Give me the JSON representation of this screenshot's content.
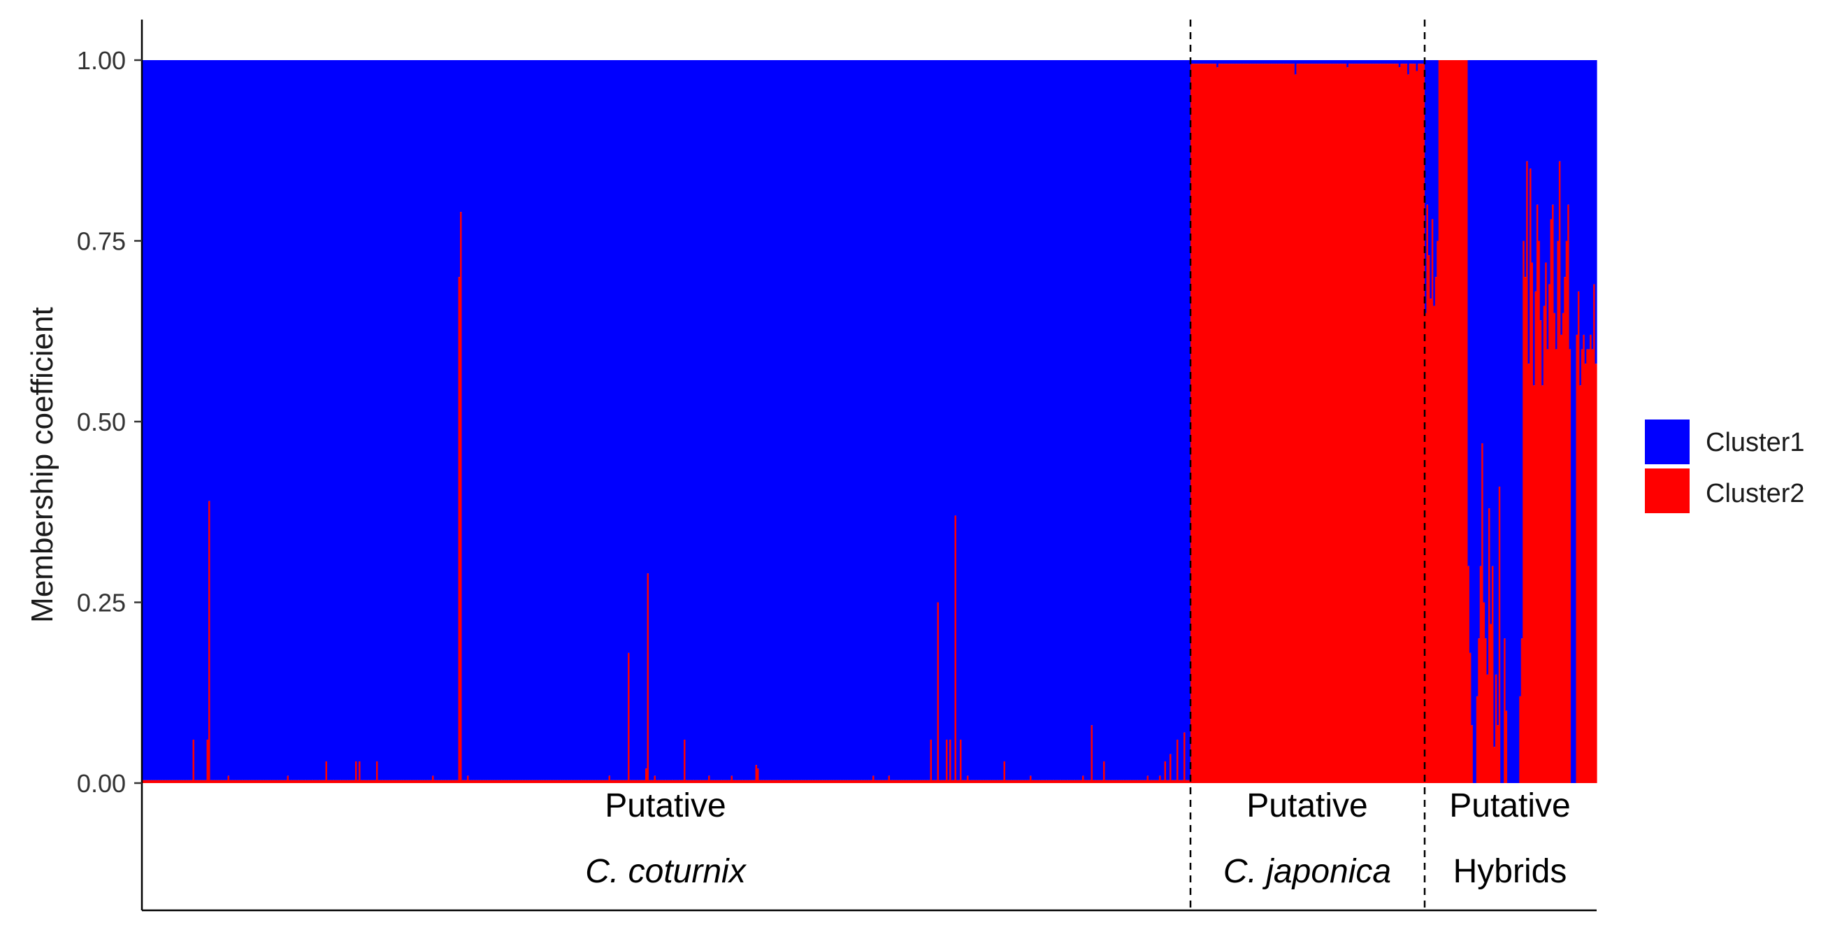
{
  "chart_data": {
    "type": "bar",
    "stacked": true,
    "ylabel": "Membership coefficient",
    "ylim": [
      0,
      1
    ],
    "yticks": [
      0,
      0.25,
      0.5,
      0.75,
      1.0
    ],
    "ytick_labels": [
      "0.00",
      "0.25",
      "0.50",
      "0.75",
      "1.00"
    ],
    "legend_position": "right",
    "series": [
      {
        "name": "Cluster1",
        "color": "#0000FF"
      },
      {
        "name": "Cluster2",
        "color": "#FF0000"
      }
    ],
    "groups": [
      {
        "line1": "Putative",
        "line2": "C. coturnix",
        "italic2": true,
        "n": 600,
        "cluster2_default": 0.004,
        "cluster2_spikes": [
          [
            29,
            0.06
          ],
          [
            37,
            0.06
          ],
          [
            38,
            0.39
          ],
          [
            49,
            0.01
          ],
          [
            83,
            0.01
          ],
          [
            105,
            0.03
          ],
          [
            122,
            0.03
          ],
          [
            124,
            0.03
          ],
          [
            134,
            0.03
          ],
          [
            166,
            0.01
          ],
          [
            181,
            0.7
          ],
          [
            182,
            0.79
          ],
          [
            186,
            0.01
          ],
          [
            267,
            0.01
          ],
          [
            278,
            0.18
          ],
          [
            288,
            0.02
          ],
          [
            289,
            0.29
          ],
          [
            293,
            0.01
          ],
          [
            310,
            0.06
          ],
          [
            324,
            0.01
          ],
          [
            337,
            0.01
          ],
          [
            351,
            0.025
          ],
          [
            352,
            0.02
          ],
          [
            418,
            0.01
          ],
          [
            427,
            0.01
          ],
          [
            451,
            0.06
          ],
          [
            455,
            0.25
          ],
          [
            460,
            0.06
          ],
          [
            462,
            0.06
          ],
          [
            465,
            0.37
          ],
          [
            468,
            0.06
          ],
          [
            472,
            0.01
          ],
          [
            493,
            0.03
          ],
          [
            508,
            0.01
          ],
          [
            538,
            0.01
          ],
          [
            543,
            0.08
          ],
          [
            550,
            0.03
          ],
          [
            575,
            0.01
          ],
          [
            582,
            0.01
          ],
          [
            585,
            0.03
          ],
          [
            588,
            0.04
          ],
          [
            592,
            0.06
          ],
          [
            596,
            0.07
          ]
        ]
      },
      {
        "line1": "Putative",
        "line2": "C. japonica",
        "italic2": true,
        "n": 135,
        "cluster2_default": 0.995,
        "cluster2_spikes": [
          [
            15,
            0.99
          ],
          [
            60,
            0.98
          ],
          [
            90,
            0.99
          ],
          [
            120,
            0.99
          ],
          [
            125,
            0.98
          ],
          [
            130,
            0.985
          ]
        ]
      },
      {
        "line1": "Putative",
        "line2": "Hybrids",
        "italic2": false,
        "n": 100,
        "cluster2_profile": [
          0.65,
          0.8,
          0.73,
          0.67,
          0.78,
          0.66,
          0.7,
          0.75,
          1.0,
          1.0,
          1.0,
          1.0,
          1.0,
          1.0,
          1.0,
          1.0,
          1.0,
          1.0,
          1.0,
          1.0,
          1.0,
          1.0,
          1.0,
          1.0,
          1.0,
          0.3,
          0.18,
          0.08,
          0.0,
          0.0,
          0.12,
          0.2,
          0.3,
          0.47,
          0.25,
          0.2,
          0.15,
          0.38,
          0.22,
          0.3,
          0.05,
          0.15,
          0.08,
          0.41,
          0.0,
          0.0,
          0.2,
          0.1,
          0.0,
          0.0,
          0.0,
          0.0,
          0.0,
          0.0,
          0.0,
          0.12,
          0.2,
          0.75,
          0.7,
          0.86,
          0.58,
          0.85,
          0.72,
          0.55,
          0.68,
          0.8,
          0.75,
          0.64,
          0.55,
          0.66,
          0.72,
          0.6,
          0.69,
          0.78,
          0.8,
          0.65,
          0.6,
          0.75,
          0.86,
          0.62,
          0.65,
          0.7,
          0.75,
          0.8,
          0.6,
          0.0,
          0.0,
          0.0,
          0.62,
          0.68,
          0.55,
          0.6,
          0.62,
          0.58,
          0.6,
          0.6,
          0.62,
          0.6,
          0.69,
          0.58
        ]
      }
    ]
  }
}
